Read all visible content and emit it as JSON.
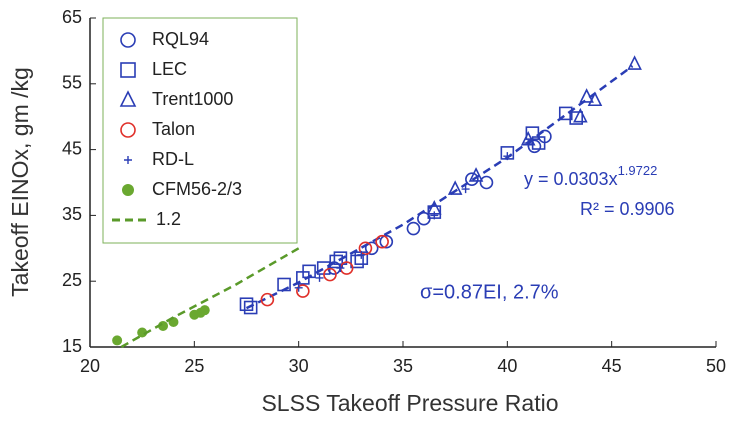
{
  "chart_data": {
    "type": "scatter",
    "xlabel": "SLSS Takeoff Pressure Ratio",
    "ylabel": "Takeoff EINOx, gm /kg",
    "xlim": [
      20,
      50
    ],
    "xticks": [
      20,
      25,
      30,
      35,
      40,
      45,
      50
    ],
    "ylim": [
      15,
      65
    ],
    "yticks": [
      15,
      25,
      35,
      45,
      55,
      65
    ],
    "grid": false,
    "legend": "top-left",
    "annotations": [
      {
        "text": "y = 0.0303x",
        "sup": "1.9722"
      },
      {
        "text": "R² = 0.9906"
      },
      {
        "text": "σ=0.87EI, 2.7%"
      }
    ],
    "series": [
      {
        "color": "#2a3db5",
        "line": "dashed",
        "x": [
          27.5,
          30,
          35,
          40,
          46
        ],
        "values": [
          20.9,
          24.8,
          33.6,
          43.8,
          57.7
        ]
      },
      {
        "name": "RQL94",
        "color": "#2a3db5",
        "marker": "circle",
        "x": [
          31.7,
          33.5,
          34.2,
          35.5,
          36,
          38.3,
          39,
          41.3,
          41.8
        ],
        "values": [
          27,
          30,
          31,
          33,
          34.5,
          40.5,
          40,
          45.5,
          47
        ]
      },
      {
        "name": "LEC",
        "color": "#2a3db5",
        "marker": "square",
        "x": [
          27.5,
          27.7,
          29.3,
          30.2,
          30.5,
          31.2,
          31.8,
          32,
          32.8,
          33,
          36.5,
          40,
          41.2,
          41.5,
          42.8,
          43.3
        ],
        "values": [
          21.5,
          21,
          24.5,
          25.5,
          26.5,
          27,
          28,
          28.5,
          28,
          28.5,
          35.5,
          44.5,
          47.5,
          46,
          50.5,
          49.8
        ]
      },
      {
        "name": "Trent1000",
        "color": "#2a3db5",
        "marker": "triangle",
        "x": [
          36.5,
          37.5,
          38.5,
          41,
          43.5,
          43.8,
          44.2,
          46.1
        ],
        "values": [
          36,
          39,
          41,
          46.5,
          50,
          53,
          52.5,
          58
        ]
      },
      {
        "name": "Talon",
        "color": "#e0302a",
        "marker": "circle",
        "x": [
          28.5,
          30.2,
          31.5,
          32.3,
          33.2,
          34
        ],
        "values": [
          22.2,
          23.5,
          26,
          27,
          30,
          31
        ]
      },
      {
        "name": "RD-L",
        "color": "#2a3db5",
        "marker": "plus",
        "x": [
          30,
          31,
          32,
          33,
          36.5,
          38,
          40,
          41
        ],
        "values": [
          24,
          25.5,
          27,
          29,
          35,
          39,
          44,
          46
        ]
      },
      {
        "name": "CFM56-2/3",
        "color": "#6aa830",
        "marker": "dot",
        "x": [
          21.3,
          22.5,
          23.5,
          24,
          25,
          25.3,
          25.5
        ],
        "values": [
          16,
          17.2,
          18.2,
          18.8,
          19.9,
          20.2,
          20.6
        ]
      },
      {
        "name": "1.2",
        "color": "#5a9a2a",
        "line": "dashed",
        "x": [
          21.5,
          24,
          27,
          30
        ],
        "values": [
          15,
          19.5,
          24.5,
          30
        ]
      }
    ]
  }
}
